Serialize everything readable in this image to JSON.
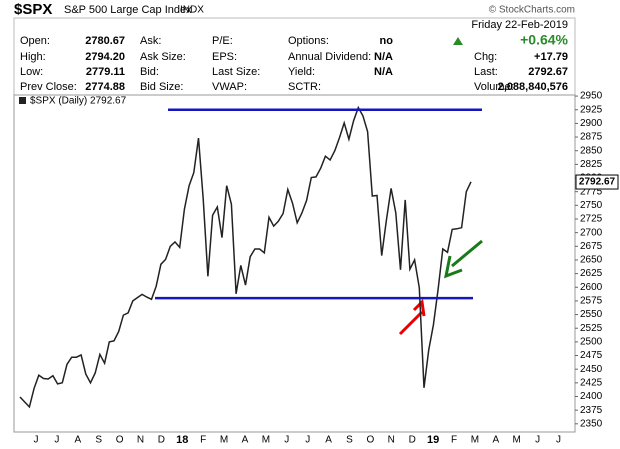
{
  "header": {
    "symbol": "$SPX",
    "name": "S&P 500 Large Cap Index",
    "exchange": "INDX",
    "copyright": "© StockCharts.com",
    "date": "Friday 22-Feb-2019",
    "change_pct": "+0.64%",
    "grid": [
      [
        {
          "label": "Open:",
          "value": "2780.67"
        },
        {
          "label": "Ask:"
        },
        {
          "label": "P/E:"
        },
        {
          "label": "Options:",
          "value": "no"
        }
      ],
      [
        {
          "label": "High:",
          "value": "2794.20"
        },
        {
          "label": "Ask Size:"
        },
        {
          "label": "EPS:"
        },
        {
          "label": "Annual Dividend:",
          "value": "N/A"
        },
        {
          "label": "Chg:",
          "value": "+17.79"
        }
      ],
      [
        {
          "label": "Low:",
          "value": "2779.11"
        },
        {
          "label": "Bid:"
        },
        {
          "label": "Last Size:"
        },
        {
          "label": "Yield:",
          "value": "N/A"
        },
        {
          "label": "Last:",
          "value": "2792.67"
        }
      ],
      [
        {
          "label": "Prev Close:",
          "value": "2774.88"
        },
        {
          "label": "Bid Size:"
        },
        {
          "label": "VWAP:"
        },
        {
          "label": "SCTR:"
        },
        {
          "label": "Volume:",
          "value": "2,088,840,576"
        }
      ]
    ]
  },
  "chart_data": {
    "type": "line",
    "legend": "$SPX (Daily) 2792.67",
    "last_label": "2792.67",
    "color": "#222222",
    "x_labels": [
      "J",
      "J",
      "A",
      "S",
      "O",
      "N",
      "D",
      "18",
      "F",
      "M",
      "A",
      "M",
      "J",
      "J",
      "A",
      "S",
      "O",
      "N",
      "D",
      "19",
      "F",
      "M",
      "A",
      "M",
      "J",
      "J"
    ],
    "values": [
      2399,
      2390,
      2381,
      2415,
      2439,
      2433,
      2432,
      2438,
      2423,
      2425,
      2459,
      2472,
      2472,
      2476,
      2441,
      2425,
      2443,
      2477,
      2461,
      2500,
      2502,
      2519,
      2549,
      2553,
      2575,
      2581,
      2587,
      2582,
      2578,
      2602,
      2642,
      2651,
      2675,
      2683,
      2673,
      2743,
      2786,
      2810,
      2873,
      2762,
      2620,
      2732,
      2747,
      2691,
      2786,
      2752,
      2588,
      2640,
      2604,
      2656,
      2670,
      2670,
      2663,
      2728,
      2712,
      2721,
      2735,
      2779,
      2754,
      2718,
      2736,
      2759,
      2801,
      2802,
      2818,
      2840,
      2833,
      2850,
      2874,
      2901,
      2871,
      2905,
      2929,
      2914,
      2885,
      2767,
      2768,
      2658,
      2723,
      2781,
      2736,
      2632,
      2760,
      2633,
      2650,
      2599,
      2416,
      2485,
      2531,
      2596,
      2670,
      2664,
      2706,
      2707,
      2709,
      2775,
      2793
    ],
    "last_value": 2792.67,
    "hlines": [
      2925,
      2580
    ],
    "ylim": [
      2335,
      2952
    ],
    "yticks": [
      2350,
      2375,
      2400,
      2425,
      2450,
      2475,
      2500,
      2525,
      2550,
      2575,
      2600,
      2625,
      2650,
      2675,
      2700,
      2725,
      2750,
      2775,
      2800,
      2825,
      2850,
      2875,
      2900,
      2925,
      2950
    ]
  }
}
